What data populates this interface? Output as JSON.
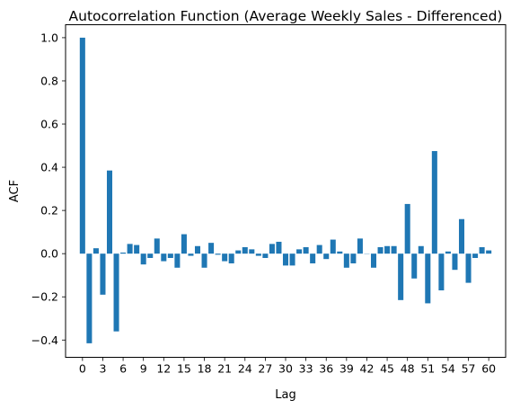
{
  "chart_data": {
    "type": "bar",
    "title": "Autocorrelation Function (Average Weekly Sales - Differenced)",
    "xlabel": "Lag",
    "ylabel": "ACF",
    "bar_color": "#1f77b4",
    "xlim": [
      -2.5,
      62.5
    ],
    "ylim": [
      -0.48,
      1.06
    ],
    "x_ticks": [
      0,
      3,
      6,
      9,
      12,
      15,
      18,
      21,
      24,
      27,
      30,
      33,
      36,
      39,
      42,
      45,
      48,
      51,
      54,
      57,
      60
    ],
    "y_ticks": [
      -0.4,
      -0.2,
      0.0,
      0.2,
      0.4,
      0.6,
      0.8,
      1.0
    ],
    "y_tick_labels": [
      "−0.4",
      "−0.2",
      "0.0",
      "0.2",
      "0.4",
      "0.6",
      "0.8",
      "1.0"
    ],
    "grid": false,
    "legend": "none",
    "x": [
      0,
      1,
      2,
      3,
      4,
      5,
      6,
      7,
      8,
      9,
      10,
      11,
      12,
      13,
      14,
      15,
      16,
      17,
      18,
      19,
      20,
      21,
      22,
      23,
      24,
      25,
      26,
      27,
      28,
      29,
      30,
      31,
      32,
      33,
      34,
      35,
      36,
      37,
      38,
      39,
      40,
      41,
      42,
      43,
      44,
      45,
      46,
      47,
      48,
      49,
      50,
      51,
      52,
      53,
      54,
      55,
      56,
      57,
      58,
      59,
      60
    ],
    "values": [
      1.0,
      -0.415,
      0.025,
      -0.19,
      0.385,
      -0.36,
      0.005,
      0.045,
      0.04,
      -0.05,
      -0.02,
      0.07,
      -0.035,
      -0.02,
      -0.065,
      0.09,
      -0.01,
      0.035,
      -0.065,
      0.05,
      -0.005,
      -0.035,
      -0.045,
      0.015,
      0.03,
      0.02,
      -0.01,
      -0.02,
      0.045,
      0.055,
      -0.055,
      -0.055,
      0.02,
      0.03,
      -0.045,
      0.04,
      -0.025,
      0.065,
      0.01,
      -0.065,
      -0.045,
      0.07,
      0.0,
      -0.065,
      0.03,
      0.035,
      0.035,
      -0.215,
      0.23,
      -0.115,
      0.035,
      -0.23,
      0.475,
      -0.17,
      0.01,
      -0.075,
      0.16,
      -0.135,
      -0.02,
      0.03,
      0.015
    ]
  }
}
